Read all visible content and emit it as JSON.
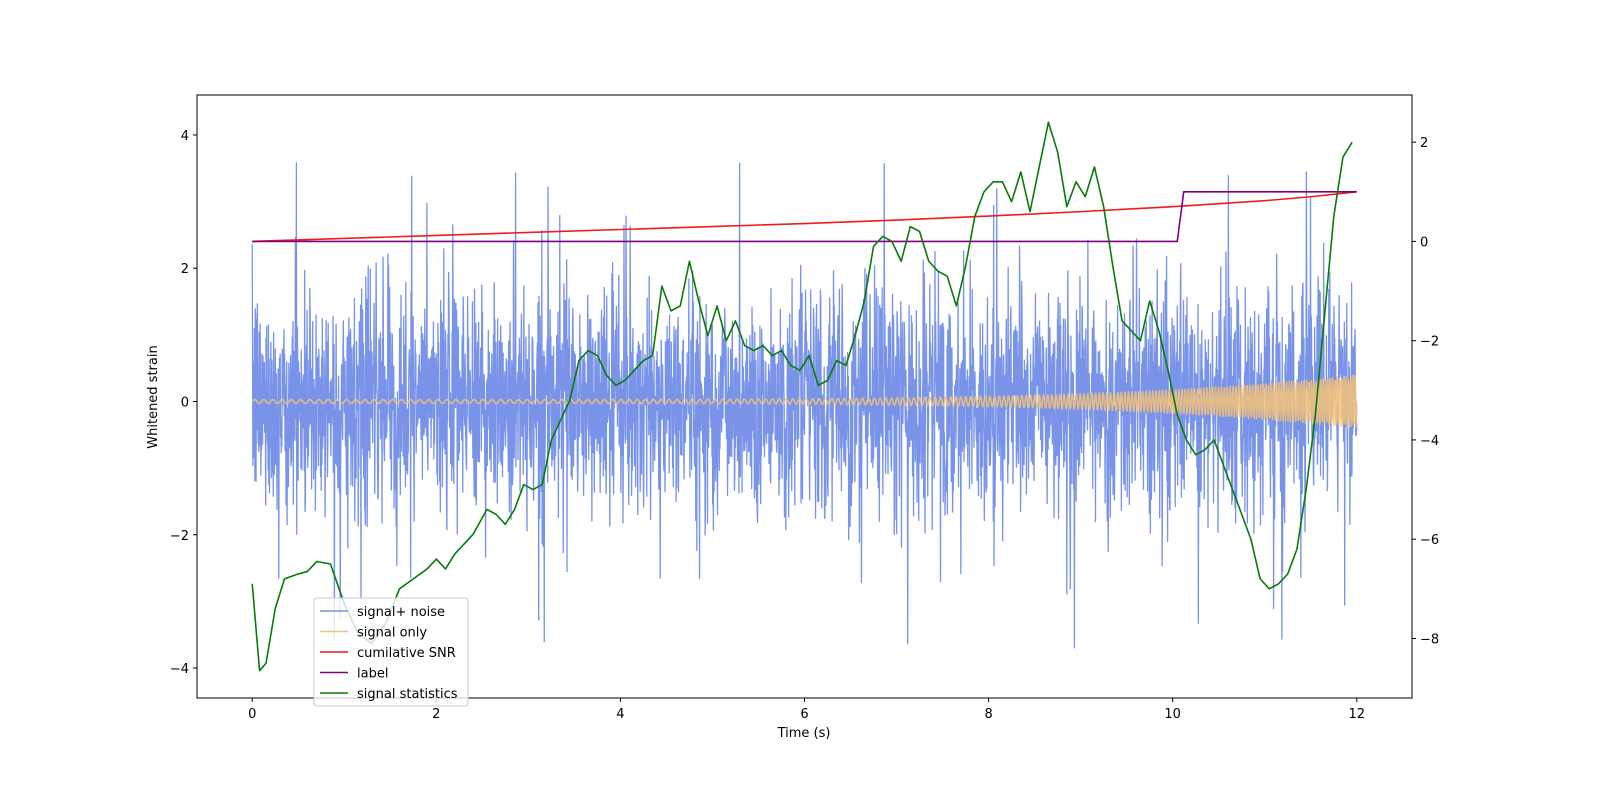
{
  "chart_data": {
    "type": "line",
    "title": "",
    "xlabel": "Time (s)",
    "ylabel": "Whitened strain",
    "y2label": "",
    "xlim": [
      -0.6,
      12.6
    ],
    "ylim": [
      -4.45,
      4.6
    ],
    "y2lim": [
      -9.2,
      2.95
    ],
    "xticks": [
      0,
      2,
      4,
      6,
      8,
      10,
      12
    ],
    "xtick_labels": [
      "0",
      "2",
      "4",
      "6",
      "8",
      "10",
      "12"
    ],
    "yticks": [
      -4,
      -2,
      0,
      2,
      4
    ],
    "ytick_labels": [
      "−4",
      "−2",
      "0",
      "2",
      "4"
    ],
    "y2ticks": [
      -8,
      -6,
      -4,
      -2,
      0,
      2
    ],
    "y2tick_labels": [
      "−8",
      "−6",
      "−4",
      "−2",
      "0",
      "2"
    ],
    "grid": false,
    "legend_position": "lower-left",
    "series": [
      {
        "name": "signal+ noise",
        "color": "#7893e8",
        "axis": "left",
        "kind": "noise",
        "x_range": [
          0,
          12
        ],
        "std": 1.0,
        "peak_max": 4.15,
        "peak_min": -4.05
      },
      {
        "name": "signal only",
        "color": "#f5c277",
        "axis": "left",
        "kind": "chirp",
        "x_range": [
          0,
          12
        ],
        "amplitude_start": 0.03,
        "amplitude_end": 0.4
      },
      {
        "name": "cumilative SNR",
        "color": "#ee1c1c",
        "axis": "right",
        "x": [
          0,
          1,
          2,
          3,
          4,
          5,
          6,
          7,
          8,
          9,
          10,
          10.5,
          11,
          11.5,
          12
        ],
        "values": [
          0.0,
          0.06,
          0.12,
          0.18,
          0.24,
          0.3,
          0.36,
          0.43,
          0.51,
          0.6,
          0.7,
          0.76,
          0.82,
          0.9,
          1.0
        ]
      },
      {
        "name": "label",
        "color": "#800080",
        "axis": "right",
        "x": [
          0,
          10.05,
          10.12,
          12
        ],
        "values": [
          0,
          0,
          1,
          1
        ]
      },
      {
        "name": "signal statistics",
        "color": "#0a7a0a",
        "axis": "right",
        "x": [
          0,
          0.08,
          0.15,
          0.25,
          0.35,
          0.5,
          0.6,
          0.7,
          0.85,
          1.0,
          1.15,
          1.3,
          1.45,
          1.6,
          1.75,
          1.9,
          2.0,
          2.1,
          2.2,
          2.3,
          2.4,
          2.55,
          2.65,
          2.75,
          2.85,
          2.95,
          3.05,
          3.15,
          3.25,
          3.35,
          3.45,
          3.55,
          3.65,
          3.75,
          3.85,
          3.95,
          4.05,
          4.15,
          4.25,
          4.35,
          4.45,
          4.55,
          4.65,
          4.75,
          4.85,
          4.95,
          5.05,
          5.15,
          5.25,
          5.35,
          5.45,
          5.55,
          5.65,
          5.75,
          5.85,
          5.95,
          6.05,
          6.15,
          6.25,
          6.35,
          6.45,
          6.55,
          6.65,
          6.75,
          6.85,
          6.95,
          7.05,
          7.15,
          7.25,
          7.35,
          7.45,
          7.55,
          7.65,
          7.75,
          7.85,
          7.95,
          8.05,
          8.15,
          8.25,
          8.35,
          8.45,
          8.55,
          8.65,
          8.75,
          8.85,
          8.95,
          9.05,
          9.15,
          9.25,
          9.35,
          9.45,
          9.55,
          9.65,
          9.75,
          9.85,
          9.95,
          10.05,
          10.15,
          10.25,
          10.35,
          10.45,
          10.55,
          10.65,
          10.75,
          10.85,
          10.95,
          11.05,
          11.15,
          11.25,
          11.35,
          11.45,
          11.55,
          11.65,
          11.75,
          11.85,
          11.95
        ],
        "values": [
          -6.9,
          -8.65,
          -8.5,
          -7.4,
          -6.8,
          -6.7,
          -6.65,
          -6.45,
          -6.5,
          -7.3,
          -7.9,
          -8.1,
          -7.7,
          -7.0,
          -6.8,
          -6.6,
          -6.4,
          -6.6,
          -6.3,
          -6.1,
          -5.9,
          -5.4,
          -5.5,
          -5.7,
          -5.4,
          -4.9,
          -5.0,
          -4.9,
          -4.0,
          -3.6,
          -3.2,
          -2.4,
          -2.2,
          -2.3,
          -2.7,
          -2.9,
          -2.8,
          -2.6,
          -2.4,
          -2.3,
          -0.9,
          -1.4,
          -1.3,
          -0.4,
          -1.2,
          -1.9,
          -1.3,
          -2.0,
          -1.6,
          -2.1,
          -2.2,
          -2.1,
          -2.3,
          -2.2,
          -2.5,
          -2.6,
          -2.3,
          -2.9,
          -2.8,
          -2.4,
          -2.5,
          -1.9,
          -1.2,
          -0.1,
          0.1,
          0.0,
          -0.4,
          0.3,
          0.2,
          -0.4,
          -0.6,
          -0.7,
          -1.3,
          -0.5,
          0.5,
          1.0,
          1.2,
          1.2,
          0.8,
          1.4,
          0.6,
          1.5,
          2.4,
          1.8,
          0.7,
          1.2,
          0.9,
          1.5,
          0.7,
          -0.5,
          -1.6,
          -1.8,
          -2.0,
          -1.2,
          -1.8,
          -2.6,
          -3.5,
          -4.0,
          -4.3,
          -4.2,
          -4.0,
          -4.5,
          -5.0,
          -5.5,
          -6.0,
          -6.8,
          -7.0,
          -6.9,
          -6.7,
          -6.2,
          -5.0,
          -3.5,
          -1.5,
          0.5,
          1.7,
          2.0
        ]
      }
    ]
  }
}
